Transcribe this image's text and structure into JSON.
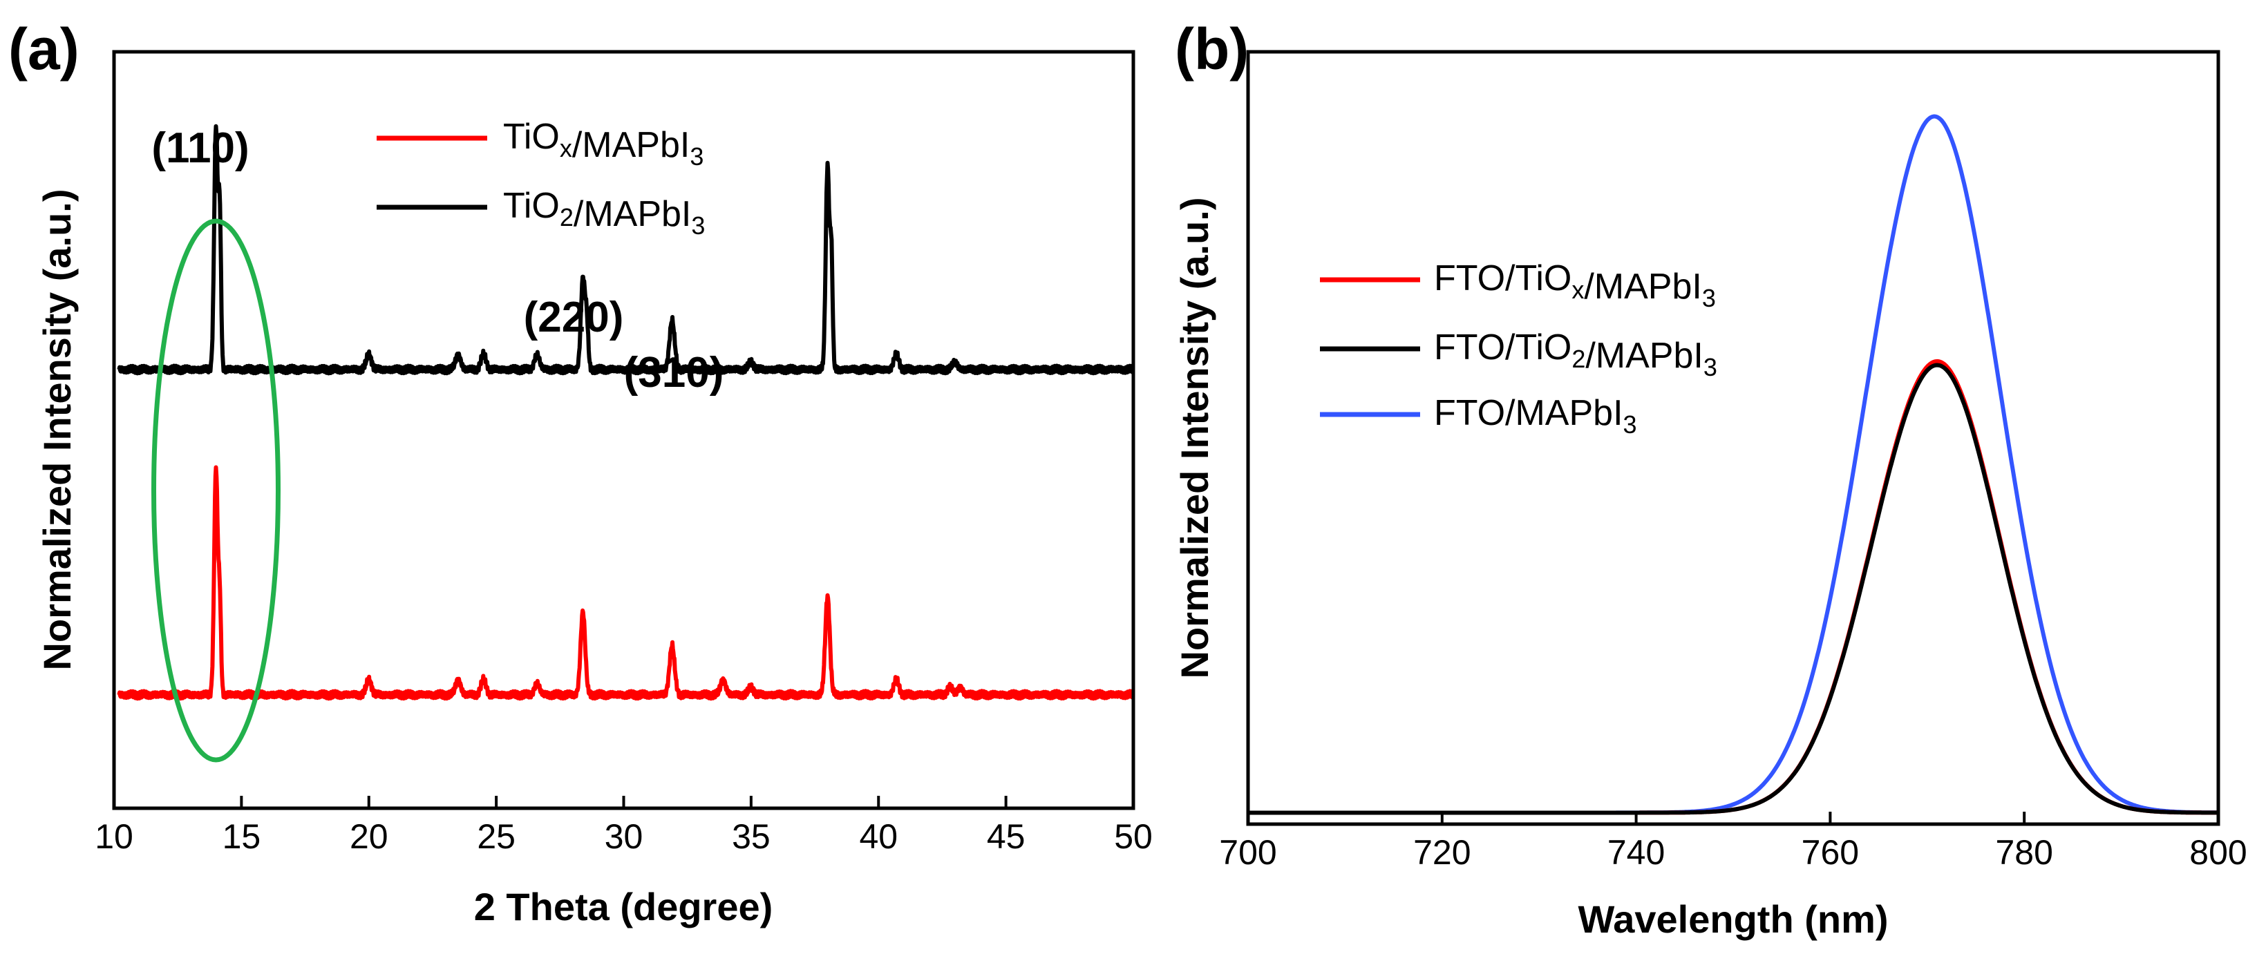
{
  "panel_a_label": "(a)",
  "panel_b_label": "(b)",
  "chart_data": [
    {
      "type": "line",
      "panel": "a",
      "xlabel": "2 Theta (degree)",
      "ylabel": "Normalized Intensity (a.u.)",
      "xlim": [
        10,
        50
      ],
      "xticks": [
        "10",
        "15",
        "20",
        "25",
        "30",
        "35",
        "40",
        "45",
        "50"
      ],
      "y_ticks_shown": false,
      "annotations": [
        {
          "text": "(110)",
          "x": 14.0
        },
        {
          "text": "(220)",
          "x": 28.4
        },
        {
          "text": "(310)",
          "x": 31.9
        }
      ],
      "highlight": {
        "shape": "ellipse",
        "color": "#22b14c",
        "x_center": 14.0
      },
      "legend": [
        {
          "base": "TiO",
          "sub": "x",
          "mid": "/MAPbI",
          "sub2": "3",
          "color": "#ff0000"
        },
        {
          "base": "TiO",
          "sub": "2",
          "mid": "/MAPbI",
          "sub2": "3",
          "color": "#000000"
        }
      ],
      "series": [
        {
          "name": "TiO2/MAPbI3",
          "color": "#000000",
          "baseline": 0.58,
          "peaks": [
            [
              14.0,
              0.32,
              0.07
            ],
            [
              14.15,
              0.2,
              0.05
            ],
            [
              20.0,
              0.02,
              0.1
            ],
            [
              23.5,
              0.02,
              0.1
            ],
            [
              24.5,
              0.02,
              0.1
            ],
            [
              26.6,
              0.02,
              0.1
            ],
            [
              28.4,
              0.12,
              0.08
            ],
            [
              28.55,
              0.06,
              0.06
            ],
            [
              31.9,
              0.065,
              0.1
            ],
            [
              35.0,
              0.01,
              0.1
            ],
            [
              38.0,
              0.27,
              0.07
            ],
            [
              38.15,
              0.15,
              0.05
            ],
            [
              40.7,
              0.02,
              0.1
            ],
            [
              43.0,
              0.01,
              0.1
            ]
          ]
        },
        {
          "name": "TiOx/MAPbI3",
          "color": "#ff0000",
          "baseline": 0.15,
          "peaks": [
            [
              14.0,
              0.3,
              0.07
            ],
            [
              14.15,
              0.12,
              0.05
            ],
            [
              20.0,
              0.02,
              0.1
            ],
            [
              23.5,
              0.02,
              0.1
            ],
            [
              24.5,
              0.02,
              0.1
            ],
            [
              26.6,
              0.015,
              0.1
            ],
            [
              28.4,
              0.11,
              0.09
            ],
            [
              31.9,
              0.065,
              0.1
            ],
            [
              33.9,
              0.02,
              0.1
            ],
            [
              35.0,
              0.01,
              0.1
            ],
            [
              38.0,
              0.13,
              0.09
            ],
            [
              40.7,
              0.02,
              0.1
            ],
            [
              42.8,
              0.01,
              0.1
            ],
            [
              43.2,
              0.01,
              0.1
            ]
          ]
        }
      ]
    },
    {
      "type": "line",
      "panel": "b",
      "xlabel": "Wavelength (nm)",
      "ylabel": "Normalized Intensity (a.u.)",
      "xlim": [
        700,
        800
      ],
      "xticks": [
        "700",
        "720",
        "740",
        "760",
        "780",
        "800"
      ],
      "y_ticks_shown": false,
      "legend": [
        {
          "base": "FTO/TiO",
          "sub": "x",
          "mid": "/MAPbI",
          "sub2": "3",
          "color": "#ff0000"
        },
        {
          "base": "FTO/TiO",
          "sub": "2",
          "mid": "/MAPbI",
          "sub2": "3",
          "color": "#000000"
        },
        {
          "base": "FTO/MAPbI",
          "sub": "3",
          "mid": "",
          "sub2": "",
          "color": "#3355ff"
        }
      ],
      "series": [
        {
          "name": "FTO/TiOx/MAPbI3",
          "color": "#ff0000",
          "peak_x": 770.8,
          "amplitude": 0.59,
          "sigma": 6.6,
          "baseline": 0.005
        },
        {
          "name": "FTO/TiO2/MAPbI3",
          "color": "#000000",
          "peak_x": 770.8,
          "amplitude": 0.585,
          "sigma": 6.6,
          "baseline": 0.005
        },
        {
          "name": "FTO/MAPbI3",
          "color": "#3355ff",
          "peak_x": 770.5,
          "amplitude": 0.91,
          "sigma": 6.9,
          "baseline": 0.005
        }
      ]
    }
  ]
}
